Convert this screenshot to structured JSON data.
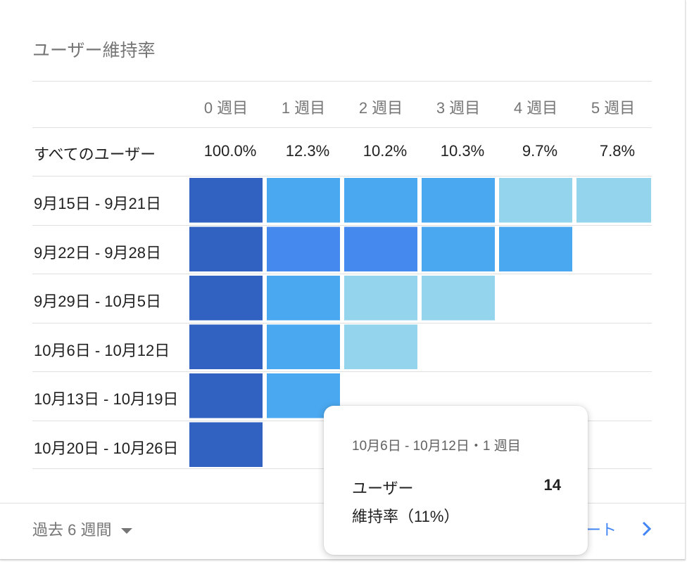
{
  "card": {
    "title": "ユーザー維持率"
  },
  "chart_data": {
    "type": "heatmap",
    "title": "ユーザー維持率",
    "columns": [
      "0 週目",
      "1 週目",
      "2 週目",
      "3 週目",
      "4 週目",
      "5 週目"
    ],
    "all_users": {
      "label": "すべてのユーザー",
      "values": [
        "100.0%",
        "12.3%",
        "10.2%",
        "10.3%",
        "9.7%",
        "7.8%"
      ]
    },
    "rows": [
      {
        "label": "9月15日 - 9月21日",
        "cell_colors": [
          "#3162c2",
          "#4aa8f0",
          "#4aa8f0",
          "#4aa8f0",
          "#94d4ec",
          "#94d4ec"
        ]
      },
      {
        "label": "9月22日 - 9月28日",
        "cell_colors": [
          "#3162c2",
          "#4589ee",
          "#4589ee",
          "#4aa8f0",
          "#4aa8f0"
        ]
      },
      {
        "label": "9月29日 - 10月5日",
        "cell_colors": [
          "#3162c2",
          "#4aa8f0",
          "#94d4ec",
          "#94d4ec"
        ]
      },
      {
        "label": "10月6日 - 10月12日",
        "cell_colors": [
          "#3162c2",
          "#4aa8f0",
          "#94d4ec"
        ]
      },
      {
        "label": "10月13日 - 10月19日",
        "cell_colors": [
          "#3162c2",
          "#4aa8f0"
        ]
      },
      {
        "label": "10月20日 - 10月26日",
        "cell_colors": [
          "#3162c2"
        ]
      }
    ]
  },
  "tooltip": {
    "header": "10月6日 - 10月12日・1 週目",
    "users_label": "ユーザー",
    "users_value": "14",
    "retention_label": "維持率（11%）"
  },
  "footer": {
    "period_label": "過去 6 週間",
    "report_link": "ート",
    "colors": {
      "link": "#4285f4",
      "muted": "#757575"
    }
  }
}
